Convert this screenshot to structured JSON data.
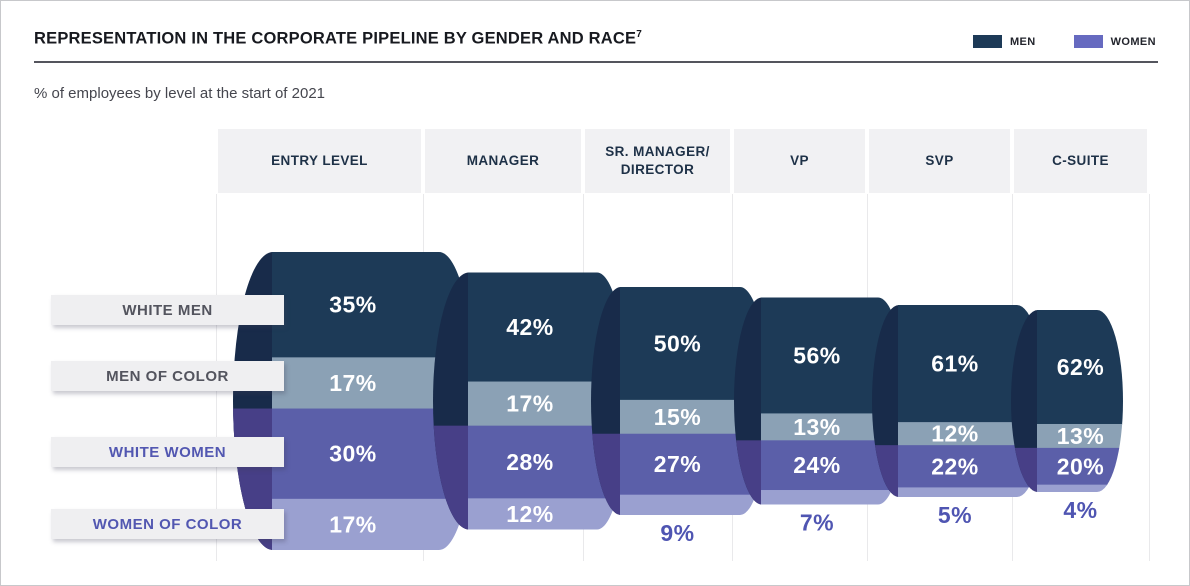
{
  "page": {
    "title": "REPRESENTATION IN THE CORPORATE PIPELINE BY GENDER AND RACE",
    "title_footnote": "7",
    "subtitle": "% of employees by level at the start of 2021"
  },
  "legend": {
    "position": "top-right",
    "items": [
      {
        "label": "MEN",
        "color": "#1d3a57"
      },
      {
        "label": "WOMEN",
        "color": "#666ac0"
      }
    ]
  },
  "chart_data": {
    "type": "funnel-stacked-bar",
    "title": "REPRESENTATION IN THE CORPORATE PIPELINE BY GENDER AND RACE",
    "subtitle": "% of employees by level at the start of 2021",
    "unit": "%",
    "categories": [
      "ENTRY LEVEL",
      "MANAGER",
      "SR. MANAGER/ DIRECTOR",
      "VP",
      "SVP",
      "C-SUITE"
    ],
    "series": [
      {
        "name": "WHITE MEN",
        "group": "MEN",
        "color": "#1d3a57",
        "label_color": "#53545e",
        "values": [
          35,
          42,
          50,
          56,
          61,
          62
        ]
      },
      {
        "name": "MEN OF COLOR",
        "group": "MEN",
        "color": "#8ba1b5",
        "label_color": "#53545e",
        "values": [
          17,
          17,
          15,
          13,
          12,
          13
        ]
      },
      {
        "name": "WHITE WOMEN",
        "group": "WOMEN",
        "color": "#5b5fa9",
        "label_color": "#5257b1",
        "values": [
          30,
          28,
          27,
          24,
          22,
          20
        ]
      },
      {
        "name": "WOMEN OF COLOR",
        "group": "WOMEN",
        "color": "#9aa0d0",
        "label_color": "#5257b1",
        "values": [
          17,
          12,
          9,
          7,
          5,
          4
        ]
      }
    ],
    "value_label_rule": "values shown as white text inside band; values below 10% shown under the cylinder in purple",
    "inside_label_threshold": 10,
    "style": {
      "cap_men": "#182b4a",
      "cap_women": "#473f87",
      "inside_label_color": "#ffffff",
      "small_label_color": "#4f55b2",
      "gridline_color": "#e9e9eb",
      "header_bg": "#f1f1f3",
      "row_label_bg": "#efeff1"
    },
    "legend_entries": [
      "MEN",
      "WOMEN"
    ],
    "background": "#ffffff",
    "grid": "vertical column separators only"
  }
}
